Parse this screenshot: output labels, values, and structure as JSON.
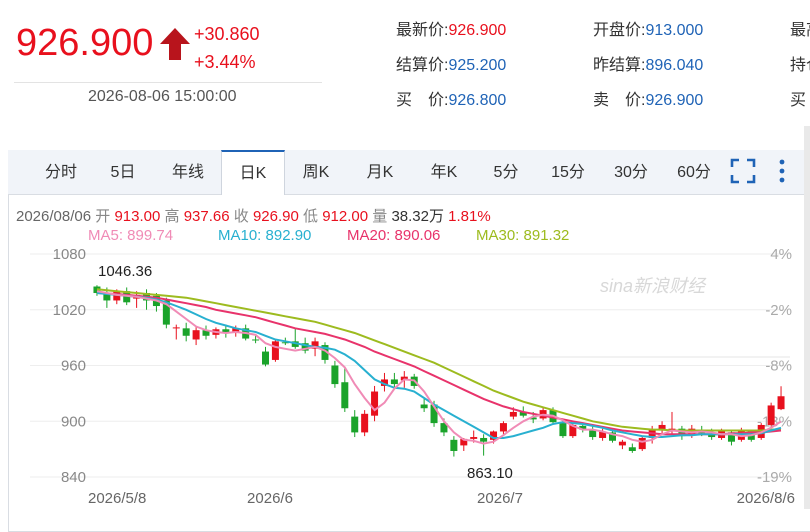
{
  "quote": {
    "price": "926.900",
    "change": "+30.860",
    "change_pct": "+3.44%",
    "datetime": "2026-08-06 15:00:00",
    "fields": [
      {
        "label": "最新价:",
        "value": "926.900",
        "color": "red"
      },
      {
        "label": "开盘价:",
        "value": "913.000",
        "color": "blue"
      },
      {
        "label": "最高",
        "value": "",
        "color": "red"
      },
      {
        "label": "结算价:",
        "value": "925.200",
        "color": "blue"
      },
      {
        "label": "昨结算:",
        "value": "896.040",
        "color": "blue"
      },
      {
        "label": "持仓",
        "value": "",
        "color": "red"
      },
      {
        "label": "买　价:",
        "value": "926.800",
        "color": "blue"
      },
      {
        "label": "卖　价:",
        "value": "926.900",
        "color": "blue"
      },
      {
        "label": "买",
        "value": "",
        "color": "red"
      }
    ]
  },
  "tabs": [
    {
      "label": "分时",
      "active": false
    },
    {
      "label": "5日",
      "active": false
    },
    {
      "label": "年线",
      "active": false
    },
    {
      "label": "日K",
      "active": true
    },
    {
      "label": "周K",
      "active": false
    },
    {
      "label": "月K",
      "active": false
    },
    {
      "label": "年K",
      "active": false
    },
    {
      "label": "5分",
      "active": false
    },
    {
      "label": "15分",
      "active": false
    },
    {
      "label": "30分",
      "active": false
    },
    {
      "label": "60分",
      "active": false
    }
  ],
  "ohlc": {
    "date": "2026/08/06",
    "open_label": "开",
    "open": "913.00",
    "high_label": "高",
    "high": "937.66",
    "close_label": "收",
    "close": "926.90",
    "low_label": "低",
    "low": "912.00",
    "vol_label": "量",
    "vol": "38.32万",
    "pct": "1.81%"
  },
  "ma_legend": [
    {
      "name": "MA5:",
      "value": "899.74",
      "color": "#f08bb6"
    },
    {
      "name": "MA10:",
      "value": "892.90",
      "color": "#28b0d0"
    },
    {
      "name": "MA20:",
      "value": "890.06",
      "color": "#e8336b"
    },
    {
      "name": "MA30:",
      "value": "891.32",
      "color": "#9dbb1f"
    }
  ],
  "watermark": "sina新浪财经",
  "colors": {
    "up": "#e8101d",
    "down": "#1aa32a",
    "accent": "#1f63b6"
  },
  "chart_data": {
    "type": "candlestick",
    "x_tick_labels": [
      "2026/5/8",
      "2026/6",
      "2026/7",
      "2026/8/6"
    ],
    "y_tick_labels": [
      "1080",
      "1020",
      "960",
      "900",
      "840"
    ],
    "y_right_labels": [
      "4%",
      "-2%",
      "-8%",
      "-13%",
      "-19%"
    ],
    "ylim": [
      840,
      1080
    ],
    "annotations": {
      "max": "1046.36",
      "min": "863.10"
    },
    "candles": [
      {
        "o": 1045,
        "h": 1046.4,
        "l": 1035,
        "c": 1038
      },
      {
        "o": 1038,
        "h": 1044,
        "l": 1022,
        "c": 1030
      },
      {
        "o": 1030,
        "h": 1042,
        "l": 1026,
        "c": 1040
      },
      {
        "o": 1040,
        "h": 1044,
        "l": 1025,
        "c": 1028
      },
      {
        "o": 1032,
        "h": 1040,
        "l": 1022,
        "c": 1036
      },
      {
        "o": 1038,
        "h": 1042,
        "l": 1020,
        "c": 1030
      },
      {
        "o": 1035,
        "h": 1038,
        "l": 1018,
        "c": 1024
      },
      {
        "o": 1030,
        "h": 1033,
        "l": 1000,
        "c": 1004
      },
      {
        "o": 1000,
        "h": 1004,
        "l": 988,
        "c": 1001
      },
      {
        "o": 1000,
        "h": 1006,
        "l": 986,
        "c": 992
      },
      {
        "o": 988,
        "h": 1002,
        "l": 982,
        "c": 998
      },
      {
        "o": 998,
        "h": 1003,
        "l": 988,
        "c": 992
      },
      {
        "o": 993,
        "h": 1001,
        "l": 989,
        "c": 999
      },
      {
        "o": 999,
        "h": 1004,
        "l": 990,
        "c": 996
      },
      {
        "o": 996,
        "h": 1003,
        "l": 991,
        "c": 1000
      },
      {
        "o": 1000,
        "h": 1004,
        "l": 987,
        "c": 989
      },
      {
        "o": 988,
        "h": 992,
        "l": 984,
        "c": 987
      },
      {
        "o": 975,
        "h": 980,
        "l": 959,
        "c": 961
      },
      {
        "o": 966,
        "h": 988,
        "l": 964,
        "c": 986
      },
      {
        "o": 985,
        "h": 990,
        "l": 982,
        "c": 984
      },
      {
        "o": 986,
        "h": 1000,
        "l": 978,
        "c": 980
      },
      {
        "o": 984,
        "h": 990,
        "l": 973,
        "c": 976
      },
      {
        "o": 978,
        "h": 990,
        "l": 970,
        "c": 986
      },
      {
        "o": 982,
        "h": 985,
        "l": 962,
        "c": 966
      },
      {
        "o": 960,
        "h": 965,
        "l": 936,
        "c": 940
      },
      {
        "o": 942,
        "h": 958,
        "l": 910,
        "c": 914
      },
      {
        "o": 905,
        "h": 912,
        "l": 883,
        "c": 888
      },
      {
        "o": 888,
        "h": 912,
        "l": 884,
        "c": 908
      },
      {
        "o": 906,
        "h": 938,
        "l": 900,
        "c": 932
      },
      {
        "o": 938,
        "h": 952,
        "l": 932,
        "c": 945
      },
      {
        "o": 945,
        "h": 952,
        "l": 936,
        "c": 940
      },
      {
        "o": 944,
        "h": 954,
        "l": 936,
        "c": 948
      },
      {
        "o": 948,
        "h": 951,
        "l": 935,
        "c": 938
      },
      {
        "o": 918,
        "h": 924,
        "l": 910,
        "c": 914
      },
      {
        "o": 918,
        "h": 922,
        "l": 894,
        "c": 898
      },
      {
        "o": 898,
        "h": 903,
        "l": 884,
        "c": 888
      },
      {
        "o": 880,
        "h": 884,
        "l": 862,
        "c": 868
      },
      {
        "o": 874,
        "h": 882,
        "l": 868,
        "c": 881
      },
      {
        "o": 881,
        "h": 890,
        "l": 877,
        "c": 883
      },
      {
        "o": 882,
        "h": 886,
        "l": 863,
        "c": 878
      },
      {
        "o": 880,
        "h": 890,
        "l": 876,
        "c": 889
      },
      {
        "o": 889,
        "h": 900,
        "l": 886,
        "c": 898
      },
      {
        "o": 905,
        "h": 915,
        "l": 902,
        "c": 910
      },
      {
        "o": 910,
        "h": 916,
        "l": 904,
        "c": 906
      },
      {
        "o": 904,
        "h": 910,
        "l": 898,
        "c": 902
      },
      {
        "o": 903,
        "h": 915,
        "l": 901,
        "c": 912
      },
      {
        "o": 912,
        "h": 915,
        "l": 897,
        "c": 899
      },
      {
        "o": 898,
        "h": 902,
        "l": 882,
        "c": 884
      },
      {
        "o": 884,
        "h": 898,
        "l": 882,
        "c": 896
      },
      {
        "o": 895,
        "h": 897,
        "l": 888,
        "c": 891
      },
      {
        "o": 890,
        "h": 895,
        "l": 880,
        "c": 883
      },
      {
        "o": 882,
        "h": 892,
        "l": 879,
        "c": 889
      },
      {
        "o": 888,
        "h": 891,
        "l": 877,
        "c": 879
      },
      {
        "o": 874,
        "h": 880,
        "l": 870,
        "c": 878
      },
      {
        "o": 872,
        "h": 876,
        "l": 866,
        "c": 868
      },
      {
        "o": 870,
        "h": 884,
        "l": 868,
        "c": 882
      },
      {
        "o": 882,
        "h": 895,
        "l": 876,
        "c": 891
      },
      {
        "o": 890,
        "h": 900,
        "l": 886,
        "c": 896
      },
      {
        "o": 890,
        "h": 910,
        "l": 886,
        "c": 892
      },
      {
        "o": 892,
        "h": 895,
        "l": 880,
        "c": 884
      },
      {
        "o": 886,
        "h": 896,
        "l": 882,
        "c": 892
      },
      {
        "o": 891,
        "h": 895,
        "l": 884,
        "c": 887
      },
      {
        "o": 886,
        "h": 892,
        "l": 880,
        "c": 883
      },
      {
        "o": 882,
        "h": 892,
        "l": 880,
        "c": 889
      },
      {
        "o": 888,
        "h": 890,
        "l": 874,
        "c": 878
      },
      {
        "o": 880,
        "h": 893,
        "l": 878,
        "c": 890
      },
      {
        "o": 889,
        "h": 891,
        "l": 878,
        "c": 880
      },
      {
        "o": 882,
        "h": 898,
        "l": 880,
        "c": 896
      },
      {
        "o": 896,
        "h": 920,
        "l": 894,
        "c": 917
      },
      {
        "o": 913,
        "h": 937.66,
        "l": 912,
        "c": 926.9
      }
    ],
    "ma5": [
      1040,
      1038,
      1036,
      1035,
      1034,
      1032,
      1030,
      1026,
      1018,
      1010,
      1002,
      998,
      996,
      995,
      996,
      995,
      993,
      984,
      980,
      978,
      976,
      978,
      980,
      976,
      968,
      958,
      940,
      925,
      912,
      920,
      935,
      945,
      944,
      932,
      916,
      900,
      888,
      880,
      879,
      876,
      878,
      885,
      893,
      900,
      905,
      907,
      906,
      901,
      895,
      891,
      891,
      889,
      886,
      884,
      880,
      878,
      880,
      886,
      890,
      889,
      888,
      889,
      888,
      886,
      886,
      884,
      885,
      888,
      893,
      899.74
    ],
    "ma10": [
      1038,
      1037,
      1036,
      1035,
      1034,
      1033,
      1031,
      1028,
      1024,
      1020,
      1015,
      1010,
      1006,
      1003,
      1000,
      998,
      996,
      992,
      988,
      986,
      984,
      982,
      980,
      979,
      977,
      972,
      965,
      955,
      945,
      940,
      936,
      935,
      932,
      925,
      918,
      912,
      906,
      900,
      894,
      888,
      882,
      882,
      884,
      887,
      890,
      893,
      897,
      899,
      898,
      897,
      895,
      893,
      890,
      888,
      886,
      884,
      883,
      883,
      884,
      885,
      885,
      886,
      886,
      886,
      886,
      886,
      886,
      887,
      890,
      892.9
    ],
    "ma20": [
      1038,
      1037.5,
      1037,
      1036,
      1035,
      1034,
      1033,
      1031,
      1029,
      1027,
      1025,
      1023,
      1020,
      1018,
      1016,
      1014,
      1012,
      1009,
      1006,
      1003,
      1000,
      998,
      996,
      994,
      991,
      988,
      984,
      980,
      975,
      971,
      967,
      963,
      959,
      954,
      949,
      944,
      939,
      934,
      929,
      924,
      920,
      916,
      913,
      910,
      908,
      906,
      904,
      902,
      900,
      898,
      896,
      894,
      892,
      890,
      889,
      888,
      887,
      886,
      886,
      886,
      886,
      886,
      886,
      886,
      887,
      887,
      888,
      888,
      889,
      890.06
    ],
    "ma30": [
      1042,
      1041,
      1040,
      1039,
      1038,
      1037,
      1036,
      1035,
      1034,
      1033,
      1031,
      1029,
      1027,
      1025,
      1023,
      1021,
      1019,
      1017,
      1015,
      1013,
      1011,
      1009,
      1007,
      1004,
      1001,
      998,
      995,
      991,
      987,
      983,
      979,
      975,
      971,
      967,
      963,
      958,
      953,
      948,
      943,
      938,
      933,
      929,
      925,
      921,
      918,
      915,
      912,
      909,
      906,
      903,
      900,
      898,
      896,
      894,
      893,
      892,
      891,
      891,
      890,
      890,
      890,
      890,
      890,
      890,
      890,
      890,
      890,
      890,
      891,
      891.32
    ]
  }
}
